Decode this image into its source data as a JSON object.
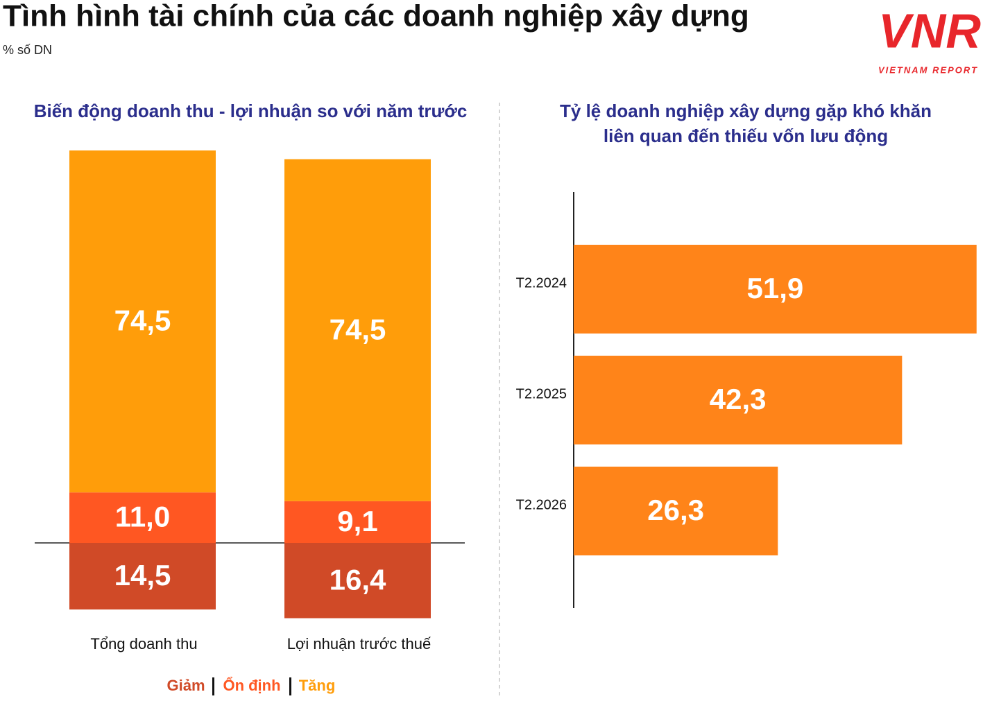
{
  "title": "Tình hình tài chính của các doanh nghiệp xây dựng",
  "subtitle": "% số DN",
  "logo": {
    "text": "VNR",
    "caption": "VIETNAM REPORT"
  },
  "chart_data": [
    {
      "type": "stacked-bar",
      "title": "Biến động doanh thu - lợi nhuận so với năm trước",
      "categories": [
        "Tổng doanh thu",
        "Lợi nhuận trước thuế"
      ],
      "series": [
        {
          "name": "Giảm",
          "color": "#d04a27",
          "stack": "down",
          "values": [
            14.5,
            16.4
          ],
          "value_labels": [
            "14,5",
            "16,4"
          ]
        },
        {
          "name": "Ổn định",
          "color": "#ff5722",
          "stack": "up",
          "values": [
            11.0,
            9.1
          ],
          "value_labels": [
            "11,0",
            "9,1"
          ]
        },
        {
          "name": "Tăng",
          "color": "#ff9d0a",
          "stack": "up",
          "values": [
            74.5,
            74.5
          ],
          "value_labels": [
            "74,5",
            "74,5"
          ]
        }
      ]
    },
    {
      "type": "hbar",
      "title": [
        "Tỷ lệ doanh nghiệp xây dựng gặp khó khăn",
        "liên quan đến thiếu vốn lưu động"
      ],
      "categories": [
        "T2.2024",
        "T2.2025",
        "T2.2026"
      ],
      "values": [
        51.9,
        42.3,
        26.3
      ],
      "value_labels": [
        "51,9",
        "42,3",
        "26,3"
      ],
      "color": "#ff8419"
    }
  ]
}
